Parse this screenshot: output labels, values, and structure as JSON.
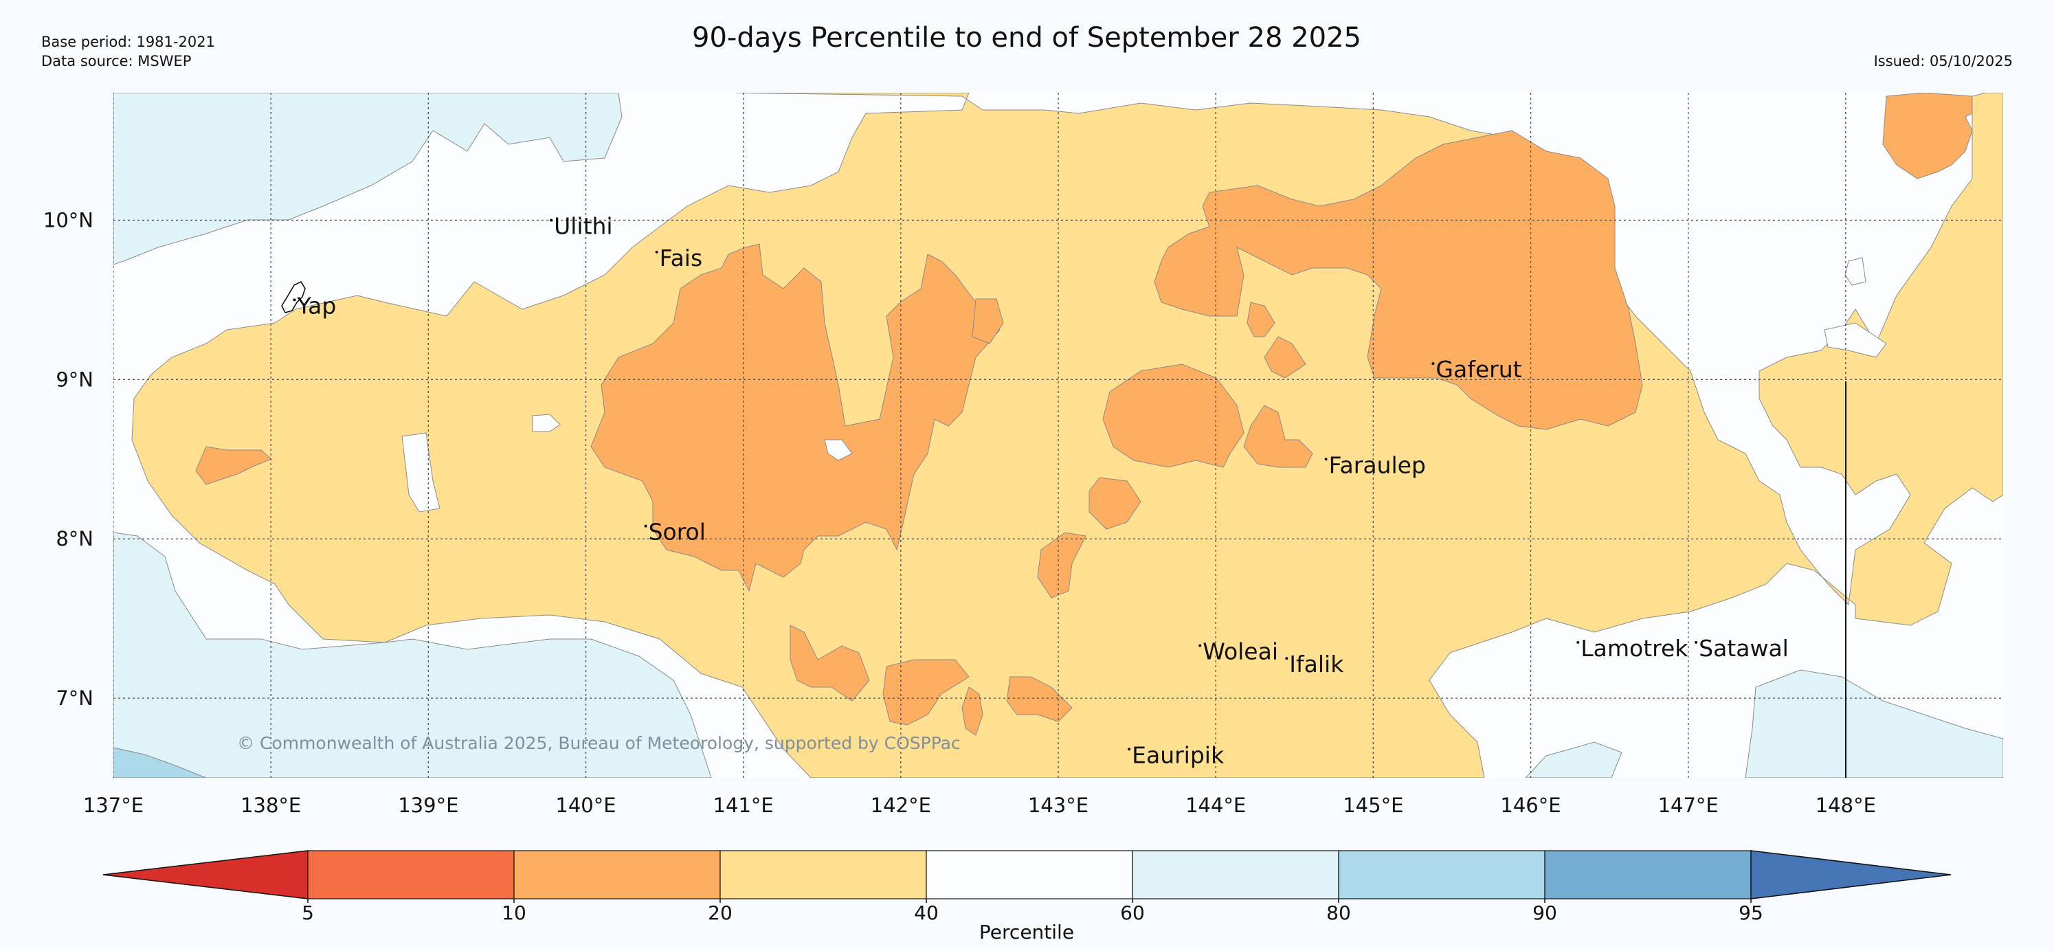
{
  "title": "90-days Percentile to end of September 28 2025",
  "meta": {
    "base_period": "Base period: 1981-2021",
    "data_source": "Data source: MSWEP",
    "issued": "Issued: 05/10/2025"
  },
  "copyright": "© Commonwealth of Australia 2025, Bureau of Meteorology, supported by COSPPac",
  "map": {
    "lon_range": [
      137,
      149
    ],
    "lat_range": [
      6.5,
      10.8
    ],
    "lon_ticks": [
      137,
      138,
      139,
      140,
      141,
      142,
      143,
      144,
      145,
      146,
      147,
      148
    ],
    "lat_ticks": [
      7,
      8,
      9,
      10
    ],
    "lon_labels": [
      "137°E",
      "138°E",
      "139°E",
      "140°E",
      "141°E",
      "142°E",
      "143°E",
      "144°E",
      "145°E",
      "146°E",
      "147°E",
      "148°E"
    ],
    "lat_labels": [
      "7°N",
      "8°N",
      "9°N",
      "10°N"
    ],
    "colors": {
      "below_5": "#d7302a",
      "5_10": "#f46d43",
      "10_20": "#fdae61",
      "20_40": "#fee090",
      "40_60": "#fbfdfe",
      "60_80": "#e0f3f8",
      "80_90": "#abd9e9",
      "90_95": "#74add1",
      "above_95": "#4575b4"
    },
    "places": [
      {
        "name": "Ulithi",
        "lon": 139.78,
        "lat": 10.0
      },
      {
        "name": "Fais",
        "lon": 140.45,
        "lat": 9.8
      },
      {
        "name": "Yap",
        "lon": 138.15,
        "lat": 9.5
      },
      {
        "name": "Gaferut",
        "lon": 145.38,
        "lat": 9.1
      },
      {
        "name": "Faraulep",
        "lon": 144.7,
        "lat": 8.5
      },
      {
        "name": "Sorol",
        "lon": 140.38,
        "lat": 8.08
      },
      {
        "name": "Woleai",
        "lon": 143.9,
        "lat": 7.33
      },
      {
        "name": "Ifalik",
        "lon": 144.45,
        "lat": 7.25
      },
      {
        "name": "Lamotrek",
        "lon": 146.3,
        "lat": 7.35
      },
      {
        "name": "Satawal",
        "lon": 147.05,
        "lat": 7.35
      },
      {
        "name": "Eauripik",
        "lon": 143.45,
        "lat": 6.68
      }
    ]
  },
  "colorbar": {
    "label": "Percentile",
    "ticks": [
      "5",
      "10",
      "20",
      "40",
      "60",
      "80",
      "90",
      "95"
    ],
    "colors": [
      "#d7302a",
      "#f46d43",
      "#fdae61",
      "#fee090",
      "#fbfdfe",
      "#e0f3f8",
      "#abd9e9",
      "#74add1",
      "#4575b4"
    ]
  }
}
